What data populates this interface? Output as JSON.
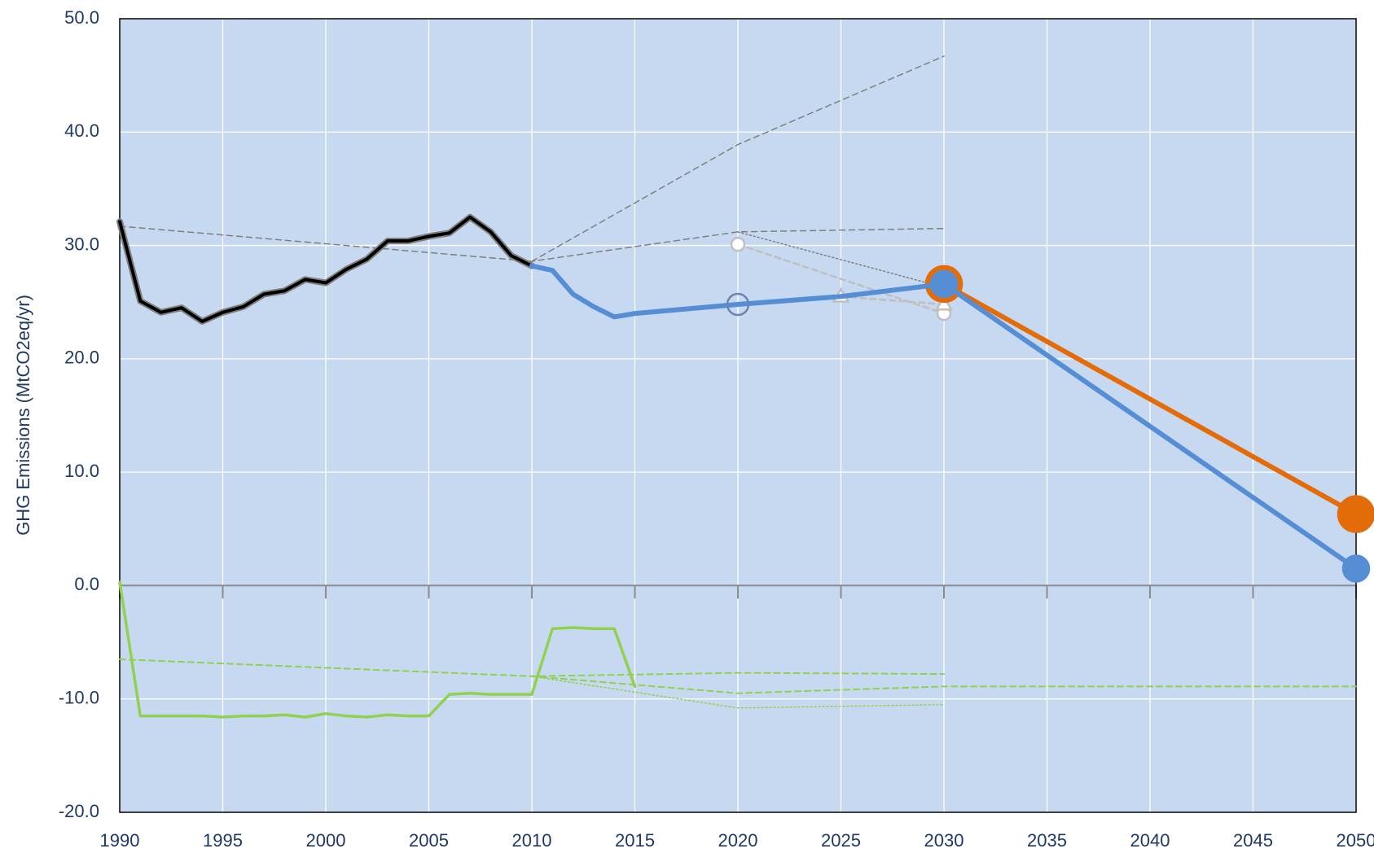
{
  "chart_data": {
    "type": "line",
    "y_label": "GHG Emissions (MtCO2eq/yr)",
    "xlim": [
      1990,
      2050
    ],
    "xticks": [
      1990,
      1995,
      2000,
      2005,
      2010,
      2015,
      2020,
      2025,
      2030,
      2035,
      2040,
      2045,
      2050
    ],
    "ylim": [
      -20,
      50
    ],
    "yticks": [
      {
        "value": -20,
        "label": "-20.0"
      },
      {
        "value": -10,
        "label": "-10.0"
      },
      {
        "value": 0,
        "label": "0.0"
      },
      {
        "value": 10,
        "label": "10.0"
      },
      {
        "value": 20,
        "label": "20.0"
      },
      {
        "value": 30,
        "label": "30.0"
      },
      {
        "value": 40,
        "label": "40.0"
      },
      {
        "value": 50,
        "label": "50.0"
      }
    ],
    "grid": true,
    "background": "#c6d9f0",
    "series": [
      {
        "color": "#7f7f7f",
        "width": 1.5,
        "dash": "dashed",
        "x": [
          2010,
          2020,
          2030
        ],
        "values": [
          28.6,
          38.9,
          46.7
        ]
      },
      {
        "color": "#7f7f7f",
        "width": 1.5,
        "dash": "dashed",
        "x": [
          1990,
          2010,
          2020,
          2030
        ],
        "values": [
          31.7,
          28.6,
          31.2,
          31.5
        ]
      },
      {
        "color": "#7f7f7f",
        "width": 1.5,
        "dash": "dotted",
        "x": [
          2020,
          2030
        ],
        "values": [
          31.2,
          26.3
        ]
      },
      {
        "color": "#bfbfbf",
        "width": 2.5,
        "dash": "dashed",
        "marker": "circle",
        "marker_size": 8,
        "marker_fill": "#ffffff",
        "marker_stroke": "#bfbfbf",
        "x": [
          2020,
          2030
        ],
        "values": [
          30.1,
          24.0
        ]
      },
      {
        "color": "#bfbfbf",
        "width": 2.5,
        "dash": "dashed",
        "marker": "triangle",
        "marker_size": 9,
        "marker_fill": "#ffffff",
        "marker_stroke": "#bfbfbf",
        "x": [
          2025,
          2030
        ],
        "values": [
          25.5,
          24.8
        ]
      },
      {
        "color": "#92d050",
        "width": 2,
        "dash": "dashed",
        "x": [
          1990,
          2010,
          2020,
          2030
        ],
        "values": [
          -6.5,
          -8.0,
          -7.7,
          -7.8
        ]
      },
      {
        "color": "#92d050",
        "width": 2,
        "dash": "dashed",
        "x": [
          2010,
          2020,
          2030,
          2050
        ],
        "values": [
          -8.0,
          -9.5,
          -8.9,
          -8.9
        ]
      },
      {
        "color": "#92d050",
        "width": 1.5,
        "dash": "dotted",
        "x": [
          2010,
          2020,
          2030
        ],
        "values": [
          -8.0,
          -10.8,
          -10.5
        ]
      },
      {
        "color": "#92d050",
        "width": 3.5,
        "x": [
          1990,
          1991,
          1992,
          1993,
          1994,
          1995,
          1996,
          1997,
          1998,
          1999,
          2000,
          2001,
          2002,
          2003,
          2004,
          2005,
          2006,
          2007,
          2008,
          2009,
          2010,
          2011,
          2012,
          2013,
          2014,
          2015
        ],
        "values": [
          0.3,
          -11.5,
          -11.5,
          -11.5,
          -11.5,
          -11.6,
          -11.5,
          -11.5,
          -11.4,
          -11.6,
          -11.3,
          -11.5,
          -11.6,
          -11.4,
          -11.5,
          -11.5,
          -9.6,
          -9.5,
          -9.6,
          -9.6,
          -9.6,
          -3.8,
          -3.7,
          -3.8,
          -3.8,
          -8.9
        ]
      },
      {
        "color": "#000000",
        "width": 4,
        "outline": "#7f7f7f",
        "x": [
          1990,
          1991,
          1992,
          1993,
          1994,
          1995,
          1996,
          1997,
          1998,
          1999,
          2000,
          2001,
          2002,
          2003,
          2004,
          2005,
          2006,
          2007,
          2008,
          2009,
          2010
        ],
        "values": [
          32.1,
          25.1,
          24.1,
          24.5,
          23.3,
          24.1,
          24.6,
          25.7,
          26.0,
          27.0,
          26.7,
          27.9,
          28.8,
          30.4,
          30.4,
          30.8,
          31.1,
          32.5,
          31.2,
          29.1,
          28.2
        ]
      },
      {
        "color": "#e36c09",
        "width": 6,
        "marker": "circle",
        "marker_size": 22,
        "marker_fill": "#e36c09",
        "marker_stroke": "#e36c09",
        "x": [
          2030,
          2050
        ],
        "values": [
          26.6,
          6.3
        ]
      },
      {
        "color": "#558ed5",
        "width": 6,
        "x": [
          2010,
          2011,
          2012,
          2013,
          2014,
          2015,
          2020,
          2025,
          2030,
          2050
        ],
        "values": [
          28.2,
          27.8,
          25.7,
          24.6,
          23.7,
          24.0,
          24.8,
          25.5,
          26.6,
          1.5
        ]
      },
      {
        "line": false,
        "marker": "circle",
        "marker_size": 16,
        "marker_fill": "#558ed5",
        "marker_stroke": "#558ed5",
        "x": [
          2030,
          2050
        ],
        "values": [
          26.6,
          1.5
        ]
      },
      {
        "line": false,
        "marker": "circle",
        "marker_size": 13,
        "marker_fill": "none",
        "marker_stroke": "#6a86b0",
        "x": [
          2020
        ],
        "values": [
          24.8
        ]
      }
    ]
  }
}
